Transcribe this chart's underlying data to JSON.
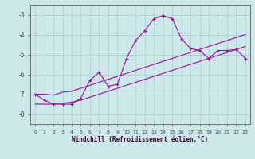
{
  "xlabel": "Windchill (Refroidissement éolien,°C)",
  "x": [
    0,
    1,
    2,
    3,
    4,
    5,
    6,
    7,
    8,
    9,
    10,
    11,
    12,
    13,
    14,
    15,
    16,
    17,
    18,
    19,
    20,
    21,
    22,
    23
  ],
  "y_main": [
    -7.0,
    -7.3,
    -7.5,
    -7.5,
    -7.5,
    -7.2,
    -6.3,
    -5.9,
    -6.6,
    -6.5,
    -5.2,
    -4.3,
    -3.8,
    -3.2,
    -3.05,
    -3.2,
    -4.2,
    -4.7,
    -4.8,
    -5.2,
    -4.8,
    -4.8,
    -4.75,
    -5.2
  ],
  "y_upper": [
    -7.0,
    -7.0,
    -7.05,
    -6.9,
    -6.85,
    -6.7,
    -6.55,
    -6.4,
    -6.25,
    -6.1,
    -5.95,
    -5.8,
    -5.65,
    -5.5,
    -5.35,
    -5.2,
    -5.05,
    -4.9,
    -4.75,
    -4.6,
    -4.45,
    -4.3,
    -4.15,
    -4.0
  ],
  "y_lower": [
    -7.5,
    -7.5,
    -7.5,
    -7.45,
    -7.4,
    -7.3,
    -7.15,
    -7.0,
    -6.85,
    -6.7,
    -6.55,
    -6.4,
    -6.25,
    -6.1,
    -5.95,
    -5.8,
    -5.65,
    -5.5,
    -5.35,
    -5.2,
    -5.05,
    -4.9,
    -4.75,
    -4.6
  ],
  "line_color": "#991199",
  "bg_color": "#cce8e8",
  "grid_color": "#aacece",
  "ylim": [
    -8.5,
    -2.5
  ],
  "xlim": [
    -0.5,
    23.5
  ]
}
